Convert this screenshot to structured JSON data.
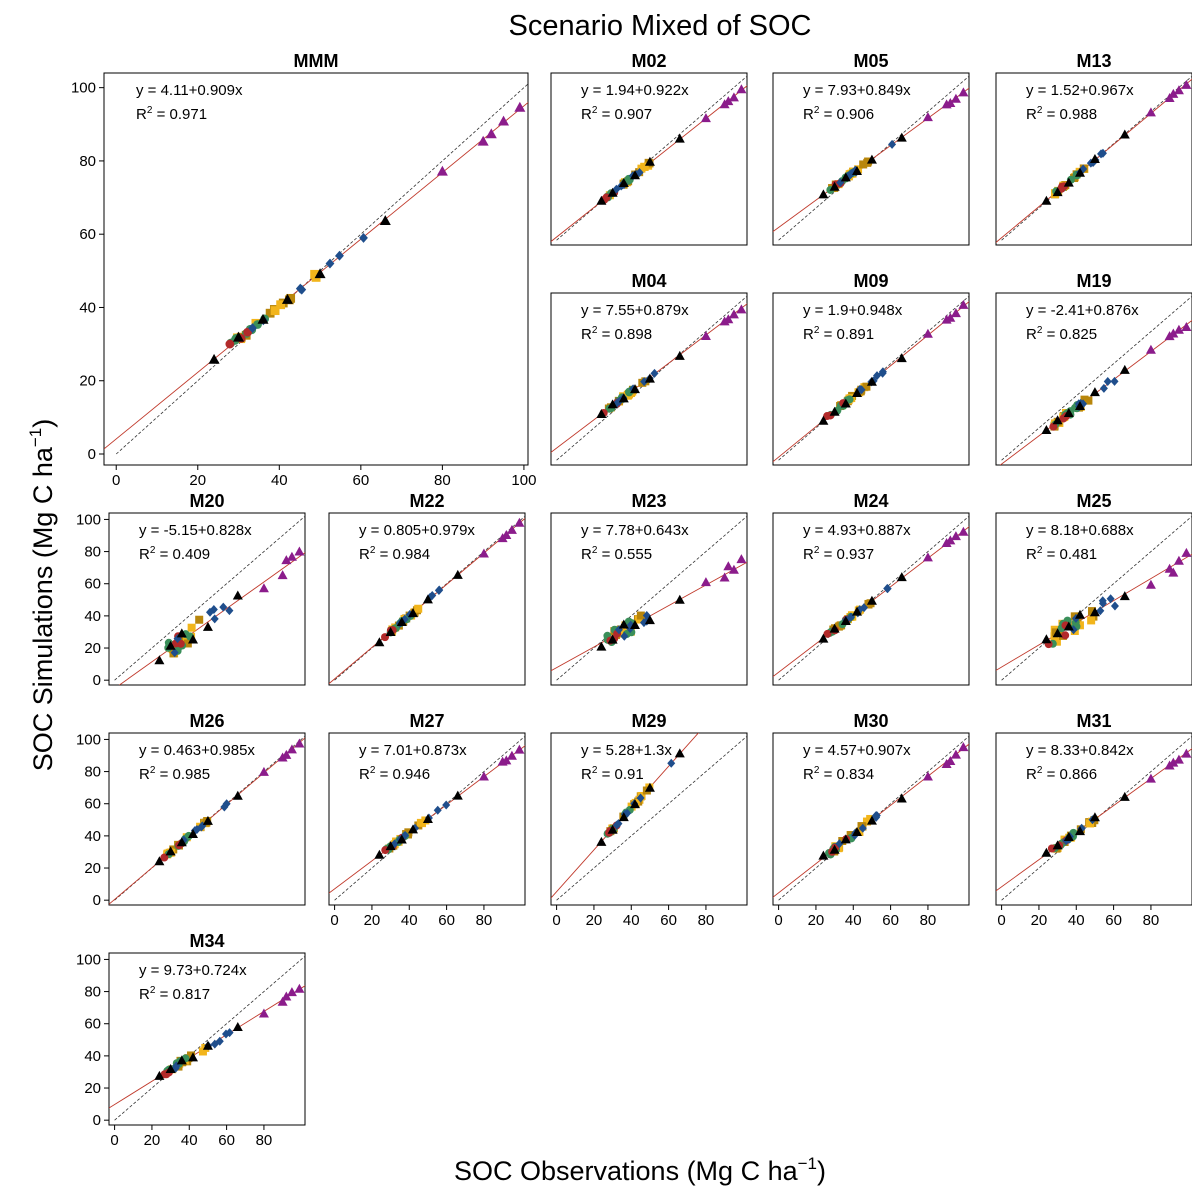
{
  "figure": {
    "title": "Scenario Mixed  of SOC",
    "xlabel_main": "SOC Observations (Mg C ha",
    "ylabel_main": "SOC Simulations (Mg C ha",
    "unit_exponent": "−1"
  },
  "chart_data": {
    "type": "scatter",
    "x_ticks": [
      0,
      20,
      40,
      60,
      80,
      100
    ],
    "y_ticks": [
      0,
      20,
      40,
      60,
      80,
      100
    ],
    "reference_line": "1:1",
    "colors": {
      "fit_line": "#c0392b",
      "one_to_one": "#333333",
      "purple": "#8b1c8b",
      "black": "#000000",
      "blue": "#1f4e8c",
      "gold": "#f2b51b",
      "olive": "#b8860b",
      "green": "#3a8f5a",
      "red": "#b22a2a"
    },
    "panels": [
      {
        "name": "MMM",
        "eq": "y = 4.11+0.909x",
        "r2_label": "R",
        "r2_value": "= 0.971"
      },
      {
        "name": "M02",
        "eq": "y = 1.94+0.922x",
        "r2_label": "R",
        "r2_value": "= 0.907"
      },
      {
        "name": "M05",
        "eq": "y = 7.93+0.849x",
        "r2_label": "R",
        "r2_value": "= 0.906"
      },
      {
        "name": "M13",
        "eq": "y = 1.52+0.967x",
        "r2_label": "R",
        "r2_value": "= 0.988"
      },
      {
        "name": "M04",
        "eq": "y = 7.55+0.879x",
        "r2_label": "R",
        "r2_value": "= 0.898"
      },
      {
        "name": "M09",
        "eq": "y = 1.9+0.948x",
        "r2_label": "R",
        "r2_value": "= 0.891"
      },
      {
        "name": "M19",
        "eq": "y = -2.41+0.876x",
        "r2_label": "R",
        "r2_value": "= 0.825"
      },
      {
        "name": "M20",
        "eq": "y = -5.15+0.828x",
        "r2_label": "R",
        "r2_value": "= 0.409"
      },
      {
        "name": "M22",
        "eq": "y = 0.805+0.979x",
        "r2_label": "R",
        "r2_value": "= 0.984"
      },
      {
        "name": "M23",
        "eq": "y = 7.78+0.643x",
        "r2_label": "R",
        "r2_value": "= 0.555"
      },
      {
        "name": "M24",
        "eq": "y = 4.93+0.887x",
        "r2_label": "R",
        "r2_value": "= 0.937"
      },
      {
        "name": "M25",
        "eq": "y = 8.18+0.688x",
        "r2_label": "R",
        "r2_value": "= 0.481"
      },
      {
        "name": "M26",
        "eq": "y = 0.463+0.985x",
        "r2_label": "R",
        "r2_value": "= 0.985"
      },
      {
        "name": "M27",
        "eq": "y = 7.01+0.873x",
        "r2_label": "R",
        "r2_value": "= 0.946"
      },
      {
        "name": "M29",
        "eq": "y = 5.28+1.3x",
        "r2_label": "R",
        "r2_value": "= 0.91"
      },
      {
        "name": "M30",
        "eq": "y = 4.57+0.907x",
        "r2_label": "R",
        "r2_value": "= 0.834"
      },
      {
        "name": "M31",
        "eq": "y = 8.33+0.842x",
        "r2_label": "R",
        "r2_value": "= 0.866"
      },
      {
        "name": "M34",
        "eq": "y = 9.73+0.724x",
        "r2_label": "R",
        "r2_value": "= 0.817"
      }
    ]
  }
}
